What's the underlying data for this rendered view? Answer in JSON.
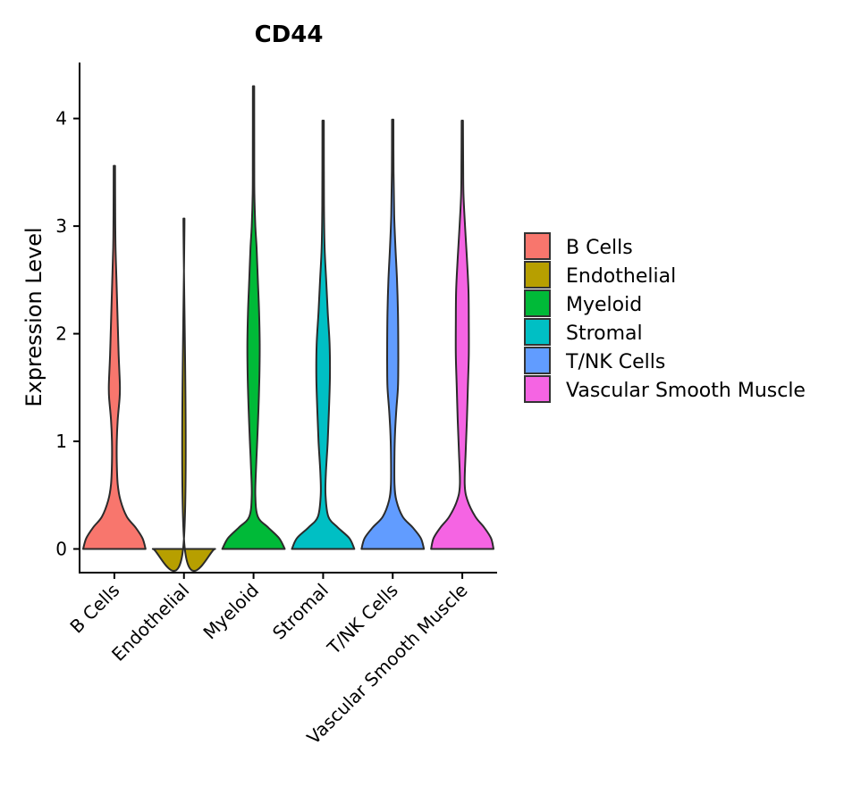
{
  "chart_data": {
    "type": "violin",
    "title": "CD44",
    "xlabel": "",
    "ylabel": "Expression Level",
    "ylim": [
      -0.22,
      4.52
    ],
    "yticks": [
      0,
      1,
      2,
      3,
      4
    ],
    "categories": [
      "B Cells",
      "Endothelial",
      "Myeloid",
      "Stromal",
      "T/NK Cells",
      "Vascular Smooth Muscle"
    ],
    "colors": {
      "B Cells": "#F8766D",
      "Endothelial": "#B79F00",
      "Myeloid": "#00BA38",
      "Stromal": "#00BFC4",
      "T/NK Cells": "#619CFF",
      "Vascular Smooth Muscle": "#F564E3"
    },
    "legend": {
      "position": "right",
      "entries": [
        "B Cells",
        "Endothelial",
        "Myeloid",
        "Stromal",
        "T/NK Cells",
        "Vascular Smooth Muscle"
      ]
    },
    "series": [
      {
        "name": "B Cells",
        "max": 3.56,
        "profile": [
          [
            0,
            0.98
          ],
          [
            0.1,
            0.88
          ],
          [
            0.2,
            0.66
          ],
          [
            0.3,
            0.38
          ],
          [
            0.45,
            0.18
          ],
          [
            0.6,
            0.09
          ],
          [
            0.8,
            0.06
          ],
          [
            1.0,
            0.06
          ],
          [
            1.2,
            0.09
          ],
          [
            1.4,
            0.15
          ],
          [
            1.5,
            0.16
          ],
          [
            1.6,
            0.15
          ],
          [
            1.8,
            0.12
          ],
          [
            2.0,
            0.1
          ],
          [
            2.2,
            0.08
          ],
          [
            2.5,
            0.05
          ],
          [
            2.8,
            0.02
          ],
          [
            3.1,
            0.01
          ],
          [
            3.56,
            0.005
          ]
        ]
      },
      {
        "name": "Endothelial",
        "max": 3.07,
        "profile": [
          [
            0,
            0.98
          ],
          [
            0.03,
            0.0
          ],
          [
            3.07,
            0.0
          ]
        ]
      },
      {
        "name": "Myeloid",
        "max": 4.3,
        "profile": [
          [
            0,
            0.98
          ],
          [
            0.1,
            0.8
          ],
          [
            0.2,
            0.45
          ],
          [
            0.3,
            0.12
          ],
          [
            0.5,
            0.04
          ],
          [
            0.8,
            0.07
          ],
          [
            1.0,
            0.1
          ],
          [
            1.3,
            0.14
          ],
          [
            1.6,
            0.17
          ],
          [
            1.9,
            0.18
          ],
          [
            2.2,
            0.16
          ],
          [
            2.5,
            0.12
          ],
          [
            2.8,
            0.08
          ],
          [
            3.0,
            0.04
          ],
          [
            3.3,
            0.01
          ],
          [
            3.6,
            0.006
          ],
          [
            4.3,
            0.004
          ]
        ]
      },
      {
        "name": "Stromal",
        "max": 3.98,
        "profile": [
          [
            0,
            0.98
          ],
          [
            0.1,
            0.82
          ],
          [
            0.2,
            0.45
          ],
          [
            0.3,
            0.15
          ],
          [
            0.5,
            0.06
          ],
          [
            0.7,
            0.07
          ],
          [
            1.0,
            0.13
          ],
          [
            1.3,
            0.17
          ],
          [
            1.6,
            0.2
          ],
          [
            1.9,
            0.19
          ],
          [
            2.2,
            0.13
          ],
          [
            2.5,
            0.08
          ],
          [
            2.8,
            0.03
          ],
          [
            3.2,
            0.01
          ],
          [
            3.98,
            0.005
          ]
        ]
      },
      {
        "name": "T/NK Cells",
        "max": 3.99,
        "profile": [
          [
            0,
            0.98
          ],
          [
            0.1,
            0.88
          ],
          [
            0.2,
            0.62
          ],
          [
            0.3,
            0.3
          ],
          [
            0.45,
            0.1
          ],
          [
            0.6,
            0.04
          ],
          [
            0.9,
            0.04
          ],
          [
            1.1,
            0.06
          ],
          [
            1.3,
            0.1
          ],
          [
            1.5,
            0.15
          ],
          [
            1.7,
            0.16
          ],
          [
            1.9,
            0.16
          ],
          [
            2.2,
            0.15
          ],
          [
            2.5,
            0.12
          ],
          [
            2.8,
            0.07
          ],
          [
            3.1,
            0.03
          ],
          [
            3.5,
            0.01
          ],
          [
            3.99,
            0.005
          ]
        ]
      },
      {
        "name": "Vascular Smooth Muscle",
        "max": 3.98,
        "profile": [
          [
            0,
            0.98
          ],
          [
            0.1,
            0.9
          ],
          [
            0.2,
            0.68
          ],
          [
            0.3,
            0.4
          ],
          [
            0.45,
            0.15
          ],
          [
            0.6,
            0.06
          ],
          [
            0.9,
            0.09
          ],
          [
            1.2,
            0.13
          ],
          [
            1.5,
            0.16
          ],
          [
            1.8,
            0.19
          ],
          [
            2.1,
            0.19
          ],
          [
            2.4,
            0.18
          ],
          [
            2.7,
            0.13
          ],
          [
            3.0,
            0.07
          ],
          [
            3.3,
            0.02
          ],
          [
            3.6,
            0.01
          ],
          [
            3.98,
            0.004
          ]
        ]
      }
    ]
  }
}
